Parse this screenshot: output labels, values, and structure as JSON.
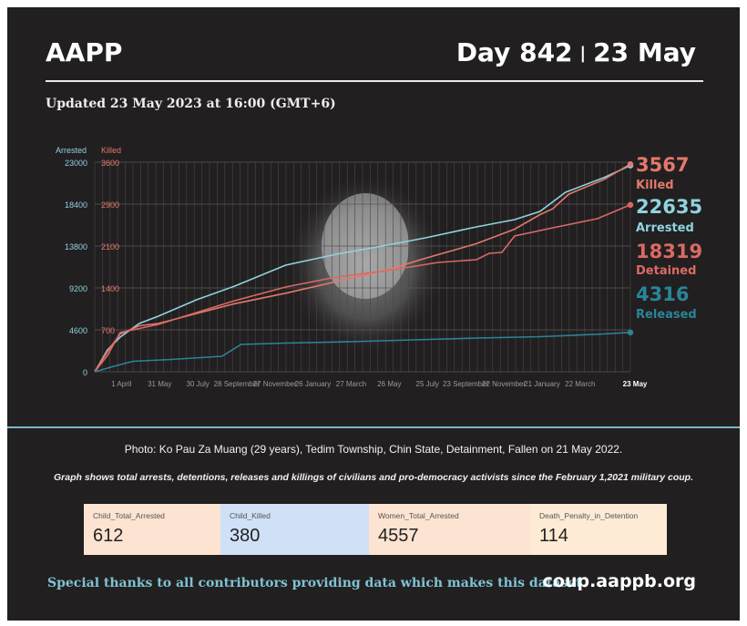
{
  "header": {
    "brand": "AAPP",
    "day": "Day 842",
    "separator": "|",
    "date": "23 May"
  },
  "updated": "Updated 23 May 2023 at 16:00 (GMT+6)",
  "footer": {
    "photo_caption": "Photo: Ko Pau Za Muang (29 years), Tedim Township, Chin State, Detainment, Fallen on 21 May 2022.",
    "graph_note": "Graph shows total arrests, detentions, releases and killings of civilians and pro-democracy activists since the February 1,2021 military coup.",
    "thanks": "Special thanks to all contributors providing data which makes this dataset.",
    "website": "coup.aappb.org"
  },
  "stats": [
    {
      "label": "Child_Total_Arrested",
      "value": "612",
      "color": "#fde3d1"
    },
    {
      "label": "Child_Killed",
      "value": "380",
      "color": "#cfe0f7"
    },
    {
      "label": "Women_Total_Arrested",
      "value": "4557",
      "color": "#fde3d1"
    },
    {
      "label": "Death_Penalty_in_Detention",
      "value": "114",
      "color": "#fdebd5"
    }
  ],
  "colors": {
    "arrested": "#8fd3e0",
    "killed": "#e3786c",
    "detained": "#d96a64",
    "released": "#2a8598"
  },
  "chart_data": {
    "type": "line",
    "left_axis": {
      "label": "Arrested",
      "ticks": [
        "0",
        "4600",
        "9200",
        "13800",
        "18400",
        "23000"
      ],
      "range": [
        0,
        23000
      ]
    },
    "right_axis": {
      "label": "Killed",
      "ticks": [
        "0",
        "700",
        "1400",
        "2100",
        "2900",
        "3600"
      ],
      "range": [
        0,
        3600
      ]
    },
    "x_range": [
      0,
      842
    ],
    "x_ticks": [
      {
        "day": 42,
        "label": "1 April"
      },
      {
        "day": 102,
        "label": "31 May"
      },
      {
        "day": 162,
        "label": "30 July"
      },
      {
        "day": 223,
        "label": "28 September"
      },
      {
        "day": 283,
        "label": "27 November"
      },
      {
        "day": 343,
        "label": "26 January"
      },
      {
        "day": 403,
        "label": "27 March"
      },
      {
        "day": 463,
        "label": "26 May"
      },
      {
        "day": 523,
        "label": "25 July"
      },
      {
        "day": 583,
        "label": "23 September"
      },
      {
        "day": 643,
        "label": "22 November"
      },
      {
        "day": 703,
        "label": "21 January"
      },
      {
        "day": 763,
        "label": "22 March"
      },
      {
        "day": 842,
        "label": "23 May"
      }
    ],
    "series": [
      {
        "name": "Arrested",
        "axis": "left",
        "end_value": "22635",
        "x": [
          0,
          20,
          40,
          70,
          100,
          160,
          220,
          300,
          380,
          460,
          520,
          600,
          660,
          700,
          740,
          800,
          842
        ],
        "y": [
          0,
          2400,
          3800,
          5300,
          6100,
          7900,
          9400,
          11700,
          12900,
          13900,
          14700,
          15900,
          16700,
          17600,
          19700,
          21300,
          22635
        ]
      },
      {
        "name": "Killed",
        "axis": "right",
        "end_value": "3567",
        "x": [
          0,
          20,
          40,
          70,
          100,
          160,
          220,
          300,
          380,
          460,
          520,
          600,
          660,
          700,
          720,
          745,
          800,
          842
        ],
        "y": [
          0,
          350,
          650,
          790,
          830,
          1000,
          1170,
          1350,
          1550,
          1750,
          1950,
          2200,
          2450,
          2700,
          2800,
          3050,
          3300,
          3567
        ]
      },
      {
        "name": "Detained",
        "axis": "left",
        "end_value": "18319",
        "x": [
          0,
          20,
          40,
          60,
          100,
          160,
          220,
          300,
          380,
          460,
          540,
          600,
          620,
          640,
          660,
          720,
          790,
          842
        ],
        "y": [
          0,
          1800,
          4300,
          4600,
          5200,
          6500,
          7800,
          9300,
          10400,
          11100,
          12000,
          12300,
          13000,
          13100,
          14900,
          15800,
          16800,
          18319
        ]
      },
      {
        "name": "Released",
        "axis": "left",
        "end_value": "4316",
        "x": [
          0,
          30,
          60,
          120,
          200,
          230,
          300,
          400,
          500,
          600,
          700,
          800,
          842
        ],
        "y": [
          0,
          600,
          1150,
          1350,
          1700,
          3000,
          3150,
          3300,
          3500,
          3700,
          3850,
          4150,
          4316
        ]
      }
    ]
  }
}
